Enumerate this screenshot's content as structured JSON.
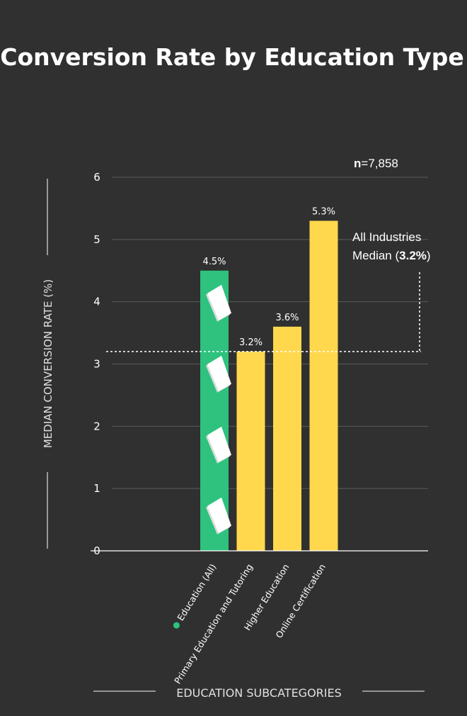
{
  "chart_data": {
    "type": "bar",
    "title": "Conversion Rate by Education Type",
    "xlabel": "EDUCATION SUBCATEGORIES",
    "ylabel": "MEDIAN CONVERSION RATE (%)",
    "ylim": [
      0,
      6
    ],
    "yticks": [
      "0",
      "1",
      "2",
      "3",
      "4",
      "5",
      "6"
    ],
    "grid": true,
    "categories": [
      "Education (All)",
      "Primary Education and Tutoring",
      "Higher Education",
      "Online Certification"
    ],
    "values": [
      4.5,
      3.2,
      3.6,
      5.3
    ],
    "value_labels": [
      "4.5%",
      "3.2%",
      "3.6%",
      "5.3%"
    ],
    "bar_colors": [
      "#2ec27e",
      "#ffd84d",
      "#ffd84d",
      "#ffd84d"
    ],
    "highlight_icon": "book-icon",
    "sample_size": {
      "prefix": "n",
      "value": "=7,858"
    },
    "reference_line": {
      "value": 3.2,
      "label_line1": "All Industries",
      "label_line2_prefix": "Median (",
      "label_line2_value": "3.2%",
      "label_line2_suffix": ")"
    },
    "colors": {
      "background": "#303030",
      "grid": "#5a5a5a",
      "text": "#ffffff",
      "education_all": "#2ec27e",
      "subcategory": "#ffd84d"
    }
  }
}
